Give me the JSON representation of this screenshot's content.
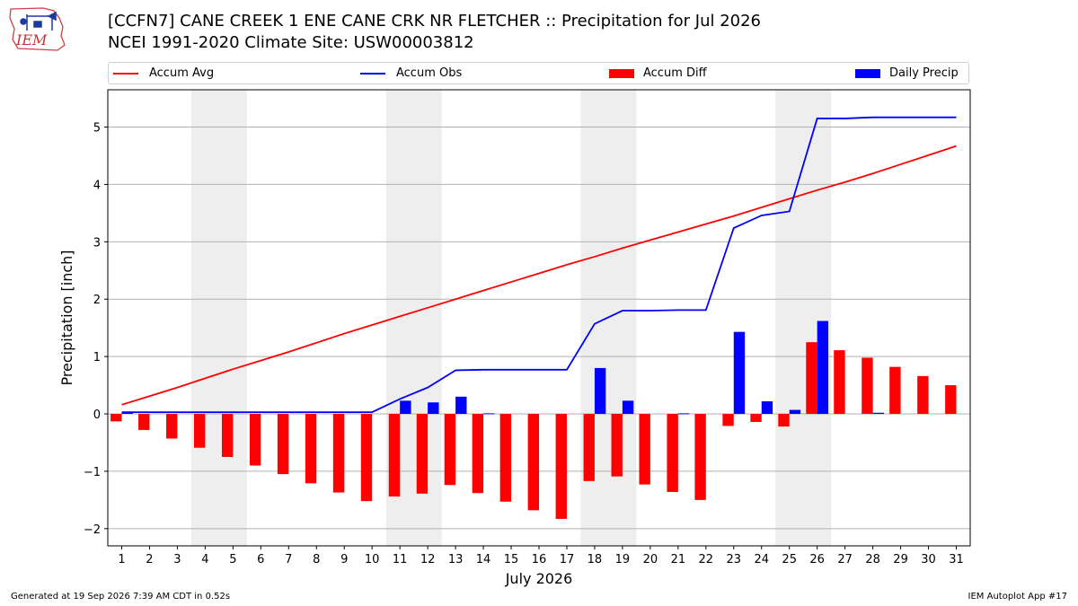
{
  "header": {
    "logo_text": "IEM",
    "title_line1": "[CCFN7] CANE CREEK 1 ENE CANE CRK NR FLETCHER :: Precipitation for Jul 2026",
    "title_line2": "NCEI 1991-2020 Climate Site: USW00003812"
  },
  "legend": {
    "items": [
      {
        "label": "Accum Avg",
        "kind": "line",
        "color": "#ff0000"
      },
      {
        "label": "Accum Obs",
        "kind": "line",
        "color": "#0000ff"
      },
      {
        "label": "Accum Diff",
        "kind": "patch",
        "color": "#ff0000"
      },
      {
        "label": "Daily Precip",
        "kind": "patch",
        "color": "#0000ff"
      }
    ]
  },
  "chart_data": {
    "type": "bar",
    "xlabel": "July 2026",
    "ylabel": "Precipitation [inch]",
    "x": [
      1,
      2,
      3,
      4,
      5,
      6,
      7,
      8,
      9,
      10,
      11,
      12,
      13,
      14,
      15,
      16,
      17,
      18,
      19,
      20,
      21,
      22,
      23,
      24,
      25,
      26,
      27,
      28,
      29,
      30,
      31
    ],
    "xlim": [
      0.5,
      31.5
    ],
    "ylim": [
      -2.3,
      5.65
    ],
    "yticks": [
      -2,
      -1,
      0,
      1,
      2,
      3,
      4,
      5
    ],
    "ytick_labels": [
      "−2",
      "−1",
      "0",
      "1",
      "2",
      "3",
      "4",
      "5"
    ],
    "grid": "horizontal",
    "weekend_shading": [
      [
        3.5,
        5.5
      ],
      [
        10.5,
        12.5
      ],
      [
        17.5,
        19.5
      ],
      [
        24.5,
        26.5
      ]
    ],
    "series": [
      {
        "name": "Accum Avg",
        "type": "line",
        "color": "#ff0000",
        "values": [
          0.16,
          0.31,
          0.46,
          0.62,
          0.78,
          0.93,
          1.08,
          1.24,
          1.4,
          1.55,
          1.7,
          1.85,
          2.0,
          2.15,
          2.3,
          2.45,
          2.6,
          2.74,
          2.89,
          3.03,
          3.17,
          3.31,
          3.45,
          3.6,
          3.75,
          3.9,
          4.04,
          4.19,
          4.35,
          4.51,
          4.67
        ]
      },
      {
        "name": "Accum Obs",
        "type": "line",
        "color": "#0000ff",
        "values": [
          0.03,
          0.03,
          0.03,
          0.03,
          0.03,
          0.03,
          0.03,
          0.03,
          0.03,
          0.03,
          0.26,
          0.46,
          0.76,
          0.77,
          0.77,
          0.77,
          0.77,
          1.57,
          1.8,
          1.8,
          1.81,
          1.81,
          3.24,
          3.46,
          3.53,
          5.15,
          5.15,
          5.17,
          5.17,
          5.17,
          5.17
        ]
      },
      {
        "name": "Accum Diff",
        "type": "bar",
        "color": "#ff0000",
        "values": [
          -0.13,
          -0.28,
          -0.43,
          -0.59,
          -0.75,
          -0.9,
          -1.05,
          -1.21,
          -1.37,
          -1.52,
          -1.44,
          -1.39,
          -1.24,
          -1.38,
          -1.53,
          -1.68,
          -1.83,
          -1.17,
          -1.09,
          -1.23,
          -1.36,
          -1.5,
          -0.21,
          -0.14,
          -0.22,
          1.25,
          1.11,
          0.98,
          0.82,
          0.66,
          0.5
        ]
      },
      {
        "name": "Daily Precip",
        "type": "bar",
        "color": "#0000ff",
        "values": [
          0.03,
          0,
          0,
          0,
          0,
          0,
          0,
          0,
          0,
          0,
          0.23,
          0.2,
          0.3,
          0.01,
          0,
          0,
          0,
          0.8,
          0.23,
          0,
          0.01,
          0,
          1.43,
          0.22,
          0.07,
          1.62,
          0,
          0.02,
          0,
          0,
          0
        ]
      }
    ]
  },
  "footer": {
    "left": "Generated at 19 Sep 2026 7:39 AM CDT in 0.52s",
    "right": "IEM Autoplot App #17"
  }
}
